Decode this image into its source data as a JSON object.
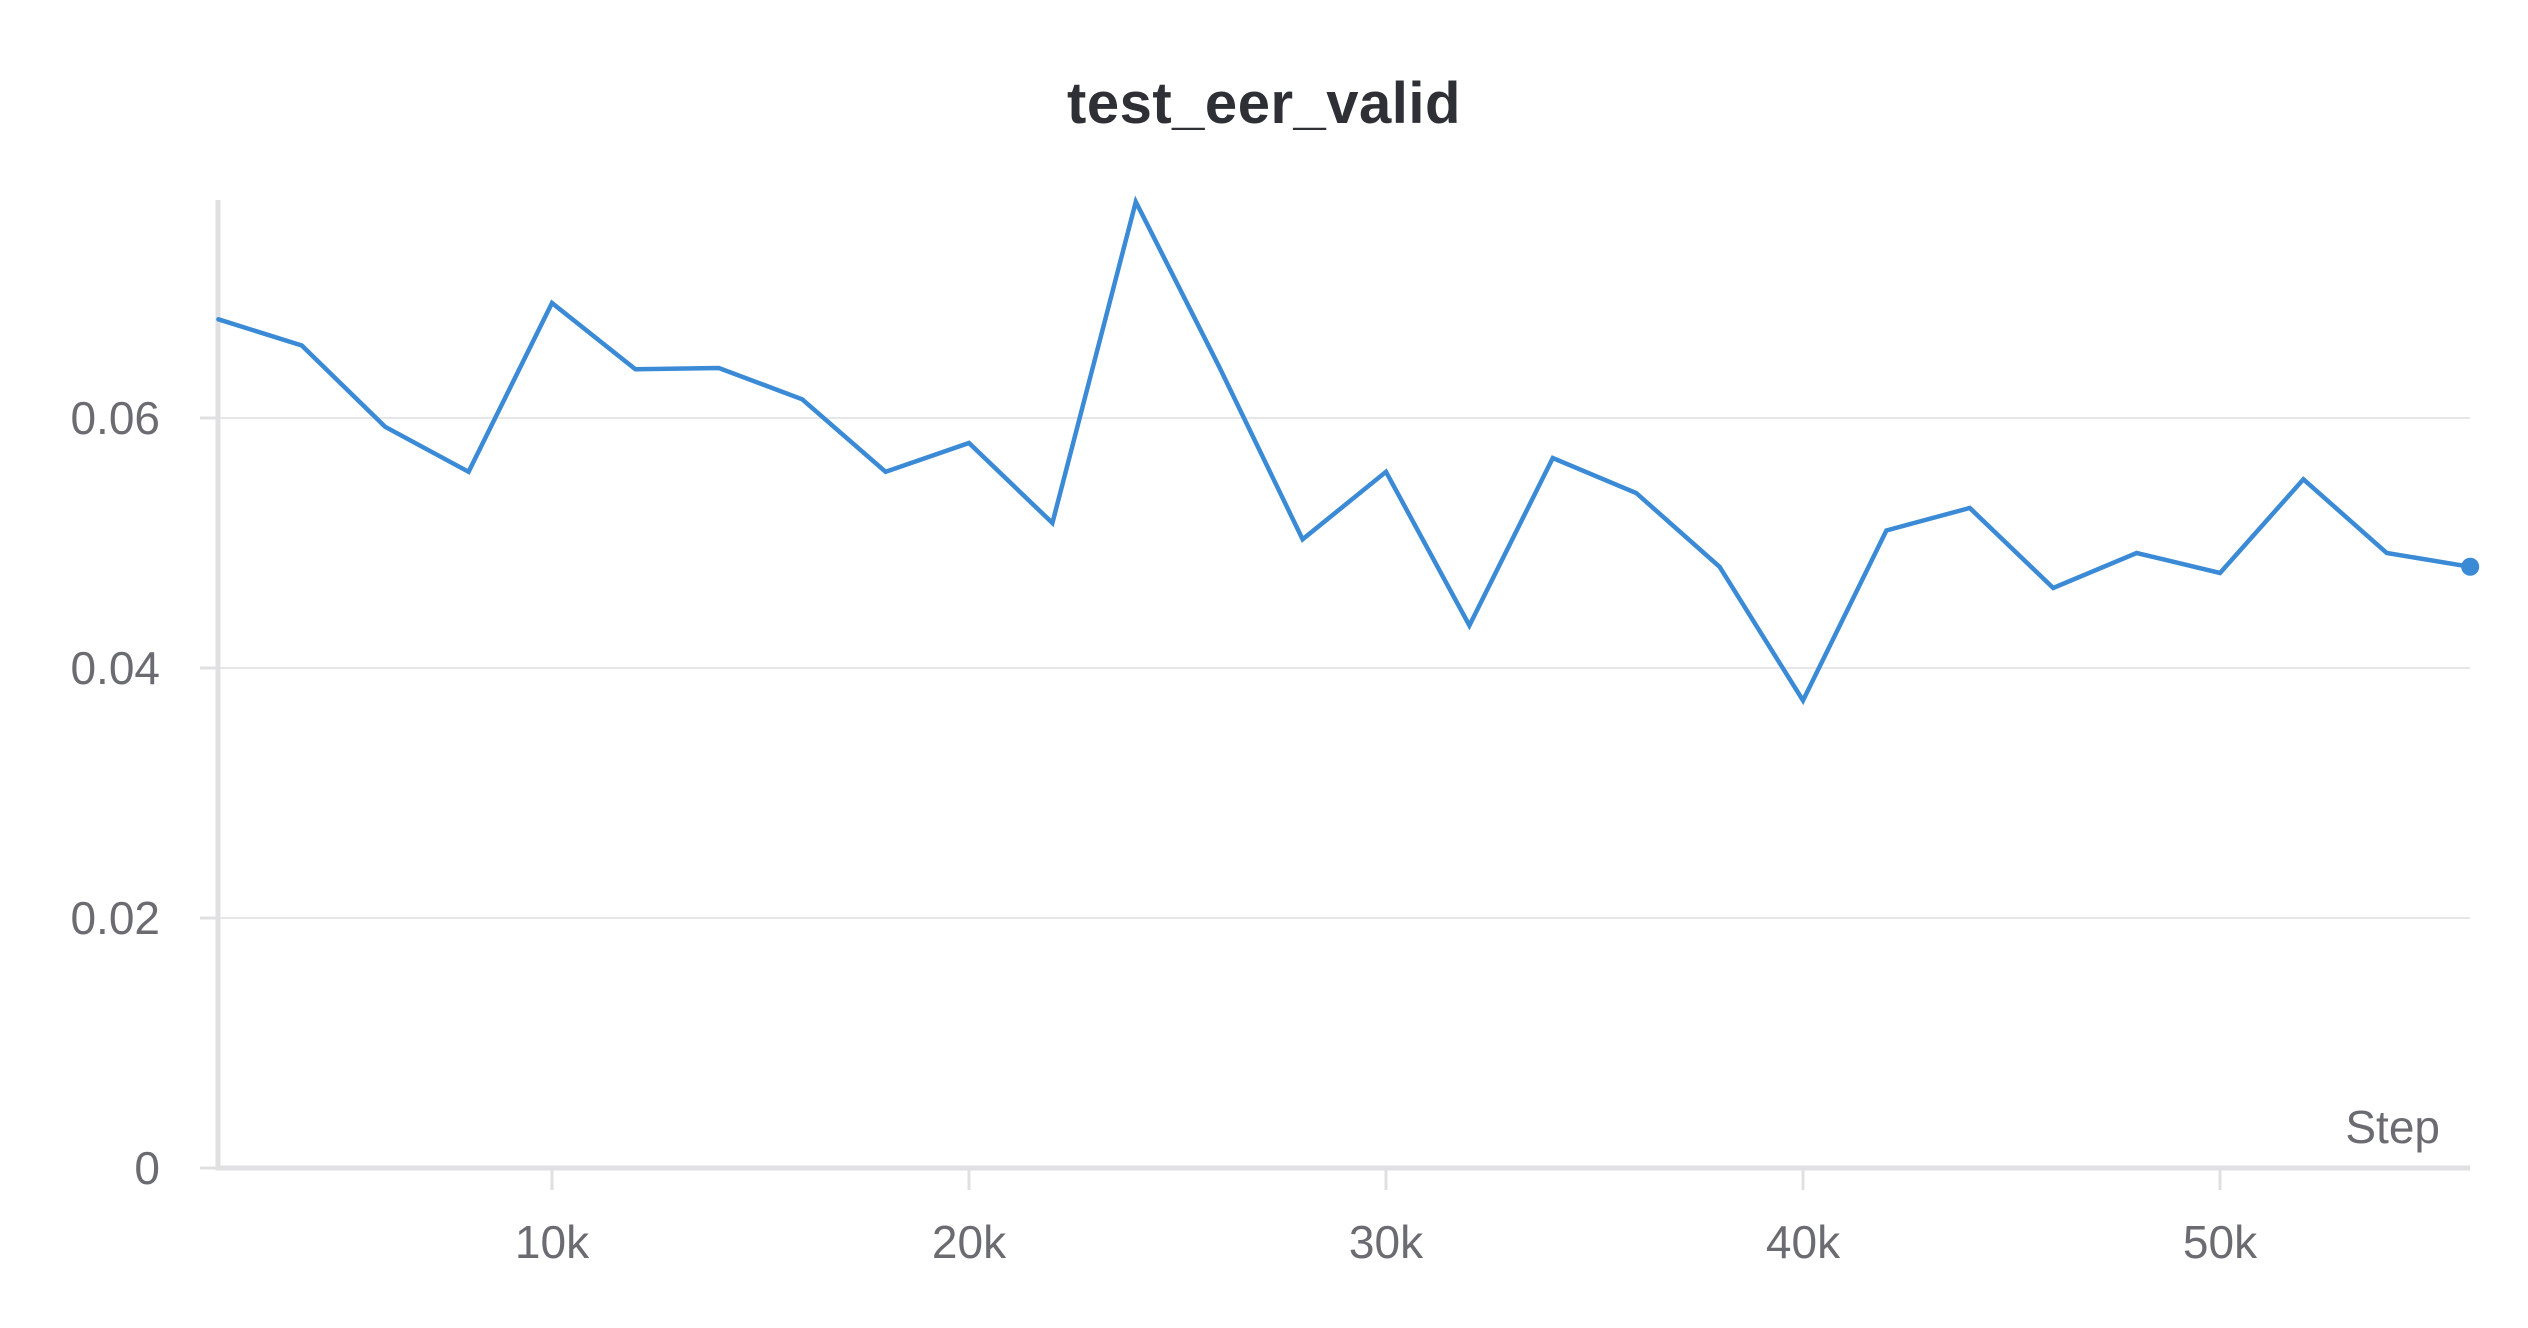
{
  "chart_data": {
    "type": "line",
    "title": "test_eer_valid",
    "xlabel": "Step",
    "ylabel": "",
    "xlim": [
      2000,
      56000
    ],
    "ylim": [
      0,
      0.077
    ],
    "xticks": [
      10000,
      20000,
      30000,
      40000,
      50000
    ],
    "xtick_labels": [
      "10k",
      "20k",
      "30k",
      "40k",
      "50k"
    ],
    "yticks": [
      0,
      0.02,
      0.04,
      0.06
    ],
    "ytick_labels": [
      "0",
      "0.02",
      "0.04",
      "0.06"
    ],
    "grid": true,
    "line_color": "#3b8ad6",
    "series": [
      {
        "x": [
          2000,
          4000,
          6000,
          8000,
          10000,
          12000,
          14000,
          16000,
          18000,
          20000,
          22000,
          24000,
          26000,
          28000,
          30000,
          32000,
          34000,
          36000,
          38000,
          40000,
          42000,
          44000,
          46000,
          48000,
          50000,
          52000,
          54000,
          56000
        ],
        "values": [
          0.0679,
          0.0658,
          0.0593,
          0.0557,
          0.0692,
          0.0639,
          0.064,
          0.0615,
          0.0557,
          0.058,
          0.0516,
          0.0773,
          0.0641,
          0.0503,
          0.0557,
          0.0434,
          0.0568,
          0.054,
          0.0481,
          0.0374,
          0.051,
          0.0528,
          0.0464,
          0.0492,
          0.0476,
          0.0551,
          0.0492,
          0.0481
        ]
      }
    ]
  }
}
